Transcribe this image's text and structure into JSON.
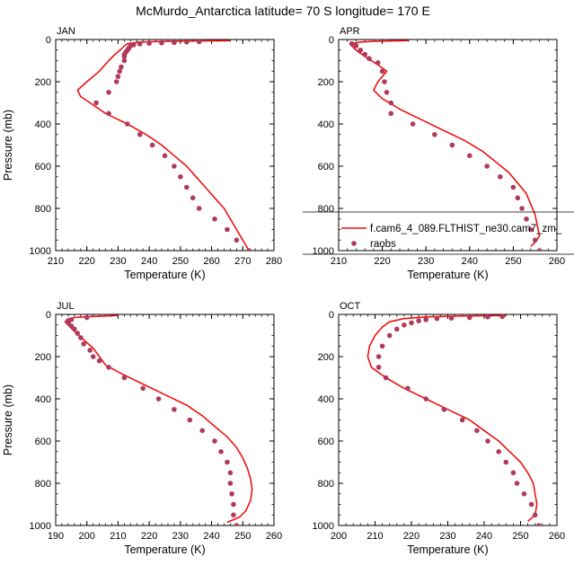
{
  "figure_title": "McMurdo_Antarctica  latitude= 70 S longitude= 170 E",
  "colors": {
    "model": "#ee1111",
    "obs": "#b03a5c",
    "axis": "#000000"
  },
  "chart_data": [
    {
      "type": "line",
      "panel": "JAN",
      "title": "JAN",
      "xlabel": "Temperature (K)",
      "ylabel": "Pressure (mb)",
      "xlim": [
        210,
        280
      ],
      "ylim": [
        1000,
        0
      ],
      "y_inverted": true,
      "xticks": [
        210,
        220,
        230,
        240,
        250,
        260,
        270,
        280
      ],
      "yticks": [
        0,
        200,
        400,
        600,
        800,
        1000
      ],
      "series": [
        {
          "style": "line",
          "points": [
            [
              266,
              5
            ],
            [
              246,
              8
            ],
            [
              237,
              12
            ],
            [
              233,
              20
            ],
            [
              232,
              30
            ],
            [
              231,
              45
            ],
            [
              229,
              70
            ],
            [
              227,
              100
            ],
            [
              224,
              150
            ],
            [
              220,
              200
            ],
            [
              217,
              240
            ],
            [
              218,
              270
            ],
            [
              221,
              300
            ],
            [
              226,
              350
            ],
            [
              233,
              400
            ],
            [
              239,
              450
            ],
            [
              244,
              500
            ],
            [
              248,
              550
            ],
            [
              252,
              600
            ],
            [
              255,
              650
            ],
            [
              258,
              700
            ],
            [
              261,
              750
            ],
            [
              264,
              800
            ],
            [
              266,
              850
            ],
            [
              268,
              900
            ],
            [
              270,
              950
            ],
            [
              272,
              1000
            ]
          ]
        },
        {
          "style": "markers",
          "points": [
            [
              256,
              10
            ],
            [
              252,
              12
            ],
            [
              248,
              14
            ],
            [
              244,
              16
            ],
            [
              240,
              18
            ],
            [
              237,
              21
            ],
            [
              235,
              25
            ],
            [
              234,
              30
            ],
            [
              233.5,
              40
            ],
            [
              233,
              50
            ],
            [
              232.5,
              60
            ],
            [
              232,
              70
            ],
            [
              232,
              80
            ],
            [
              232,
              100
            ],
            [
              231,
              130
            ],
            [
              230.5,
              150
            ],
            [
              230,
              175
            ],
            [
              229.5,
              200
            ],
            [
              227,
              250
            ],
            [
              223,
              300
            ],
            [
              227,
              350
            ],
            [
              233,
              400
            ],
            [
              237,
              450
            ],
            [
              241,
              500
            ],
            [
              245,
              550
            ],
            [
              248,
              600
            ],
            [
              250,
              650
            ],
            [
              252,
              700
            ],
            [
              254,
              750
            ],
            [
              256,
              800
            ],
            [
              261,
              850
            ],
            [
              265,
              900
            ],
            [
              268,
              950
            ],
            [
              272,
              1000
            ]
          ]
        }
      ]
    },
    {
      "type": "line",
      "panel": "APR",
      "title": "APR",
      "xlabel": "Temperature (K)",
      "ylabel": "",
      "xlim": [
        210,
        260
      ],
      "ylim": [
        1000,
        0
      ],
      "y_inverted": true,
      "xticks": [
        210,
        220,
        230,
        240,
        250,
        260
      ],
      "yticks": [
        0,
        200,
        400,
        600,
        800,
        1000
      ],
      "legend": {
        "placement": "bottom-right",
        "entries": [
          {
            "label": "f.cam6_4_089.FLTHIST_ne30.cam7_zm_",
            "style": "line"
          },
          {
            "label": "raobs",
            "style": "marker"
          }
        ]
      },
      "series": [
        {
          "style": "line",
          "points": [
            [
              226,
              5
            ],
            [
              218,
              8
            ],
            [
              215,
              12
            ],
            [
              213,
              20
            ],
            [
              213,
              30
            ],
            [
              214,
              50
            ],
            [
              216,
              80
            ],
            [
              219,
              120
            ],
            [
              221,
              150
            ],
            [
              219,
              200
            ],
            [
              218,
              240
            ],
            [
              220,
              280
            ],
            [
              224,
              330
            ],
            [
              229,
              380
            ],
            [
              234,
              430
            ],
            [
              239,
              480
            ],
            [
              243,
              530
            ],
            [
              246,
              580
            ],
            [
              249,
              630
            ],
            [
              251,
              680
            ],
            [
              253,
              730
            ],
            [
              254,
              780
            ],
            [
              255,
              830
            ],
            [
              255.5,
              880
            ],
            [
              256,
              930
            ],
            [
              255,
              960
            ],
            [
              254,
              980
            ]
          ]
        },
        {
          "style": "markers",
          "points": [
            [
              213,
              20
            ],
            [
              214,
              30
            ],
            [
              215,
              50
            ],
            [
              216,
              70
            ],
            [
              217,
              90
            ],
            [
              219,
              110
            ],
            [
              220,
              150
            ],
            [
              220.5,
              200
            ],
            [
              221,
              250
            ],
            [
              222,
              300
            ],
            [
              222,
              350
            ],
            [
              227,
              400
            ],
            [
              232,
              450
            ],
            [
              236,
              500
            ],
            [
              240,
              550
            ],
            [
              244,
              600
            ],
            [
              247,
              650
            ],
            [
              250,
              700
            ],
            [
              251,
              750
            ],
            [
              252,
              800
            ],
            [
              253,
              850
            ],
            [
              254,
              900
            ],
            [
              255,
              950
            ],
            [
              256,
              1000
            ]
          ]
        }
      ]
    },
    {
      "type": "line",
      "panel": "JUL",
      "title": "JUL",
      "xlabel": "Temperature (K)",
      "ylabel": "Pressure (mb)",
      "xlim": [
        190,
        260
      ],
      "ylim": [
        1000,
        0
      ],
      "y_inverted": true,
      "xticks": [
        190,
        200,
        210,
        220,
        230,
        240,
        250,
        260
      ],
      "yticks": [
        0,
        200,
        400,
        600,
        800,
        1000
      ],
      "series": [
        {
          "style": "line",
          "points": [
            [
              210,
              5
            ],
            [
              201,
              10
            ],
            [
              196,
              15
            ],
            [
              194,
              22
            ],
            [
              193,
              35
            ],
            [
              194,
              50
            ],
            [
              196,
              80
            ],
            [
              199,
              120
            ],
            [
              202,
              160
            ],
            [
              204,
              200
            ],
            [
              206,
              240
            ],
            [
              211,
              280
            ],
            [
              218,
              330
            ],
            [
              225,
              380
            ],
            [
              232,
              430
            ],
            [
              237,
              480
            ],
            [
              241,
              530
            ],
            [
              245,
              580
            ],
            [
              248,
              630
            ],
            [
              250,
              680
            ],
            [
              251.5,
              730
            ],
            [
              252.5,
              780
            ],
            [
              253,
              830
            ],
            [
              252.5,
              880
            ],
            [
              251,
              930
            ],
            [
              249,
              960
            ],
            [
              245,
              985
            ]
          ]
        },
        {
          "style": "markers",
          "points": [
            [
              200,
              15
            ],
            [
              195,
              25
            ],
            [
              194,
              30
            ],
            [
              194,
              40
            ],
            [
              195,
              55
            ],
            [
              196,
              70
            ],
            [
              197,
              90
            ],
            [
              198,
              110
            ],
            [
              199,
              140
            ],
            [
              201,
              170
            ],
            [
              202,
              200
            ],
            [
              204,
              220
            ],
            [
              207,
              250
            ],
            [
              212,
              300
            ],
            [
              218,
              350
            ],
            [
              223,
              400
            ],
            [
              228,
              450
            ],
            [
              233,
              500
            ],
            [
              237,
              550
            ],
            [
              241,
              600
            ],
            [
              243,
              650
            ],
            [
              245,
              700
            ],
            [
              246,
              750
            ],
            [
              246,
              800
            ],
            [
              246.5,
              850
            ],
            [
              247,
              900
            ],
            [
              247,
              950
            ],
            [
              248,
              1000
            ]
          ]
        }
      ]
    },
    {
      "type": "line",
      "panel": "OCT",
      "title": "OCT",
      "xlabel": "Temperature (K)",
      "ylabel": "",
      "xlim": [
        200,
        260
      ],
      "ylim": [
        1000,
        0
      ],
      "y_inverted": true,
      "xticks": [
        200,
        210,
        220,
        230,
        240,
        250,
        260
      ],
      "yticks": [
        0,
        200,
        400,
        600,
        800,
        1000
      ],
      "series": [
        {
          "style": "line",
          "points": [
            [
              246,
              5
            ],
            [
              232,
              8
            ],
            [
              224,
              12
            ],
            [
              218,
              20
            ],
            [
              214,
              35
            ],
            [
              212,
              60
            ],
            [
              210,
              100
            ],
            [
              208.5,
              150
            ],
            [
              208,
              200
            ],
            [
              209,
              250
            ],
            [
              213,
              300
            ],
            [
              218,
              350
            ],
            [
              224,
              400
            ],
            [
              230,
              450
            ],
            [
              236,
              500
            ],
            [
              240,
              550
            ],
            [
              244,
              600
            ],
            [
              247,
              650
            ],
            [
              250,
              700
            ],
            [
              252,
              750
            ],
            [
              253.5,
              800
            ],
            [
              254,
              850
            ],
            [
              254.5,
              900
            ],
            [
              254,
              950
            ],
            [
              252,
              980
            ]
          ]
        },
        {
          "style": "markers",
          "points": [
            [
              245,
              10
            ],
            [
              241,
              12
            ],
            [
              236,
              15
            ],
            [
              231,
              18
            ],
            [
              227,
              20
            ],
            [
              224,
              25
            ],
            [
              222,
              30
            ],
            [
              220,
              40
            ],
            [
              218,
              50
            ],
            [
              216,
              70
            ],
            [
              214,
              100
            ],
            [
              212,
              150
            ],
            [
              211,
              200
            ],
            [
              211,
              250
            ],
            [
              213,
              300
            ],
            [
              219,
              350
            ],
            [
              224,
              400
            ],
            [
              229,
              450
            ],
            [
              234,
              500
            ],
            [
              238,
              550
            ],
            [
              241,
              600
            ],
            [
              244,
              650
            ],
            [
              246,
              700
            ],
            [
              248,
              750
            ],
            [
              249,
              800
            ],
            [
              251,
              850
            ],
            [
              253,
              900
            ],
            [
              254,
              950
            ],
            [
              255,
              1000
            ]
          ]
        }
      ]
    }
  ]
}
